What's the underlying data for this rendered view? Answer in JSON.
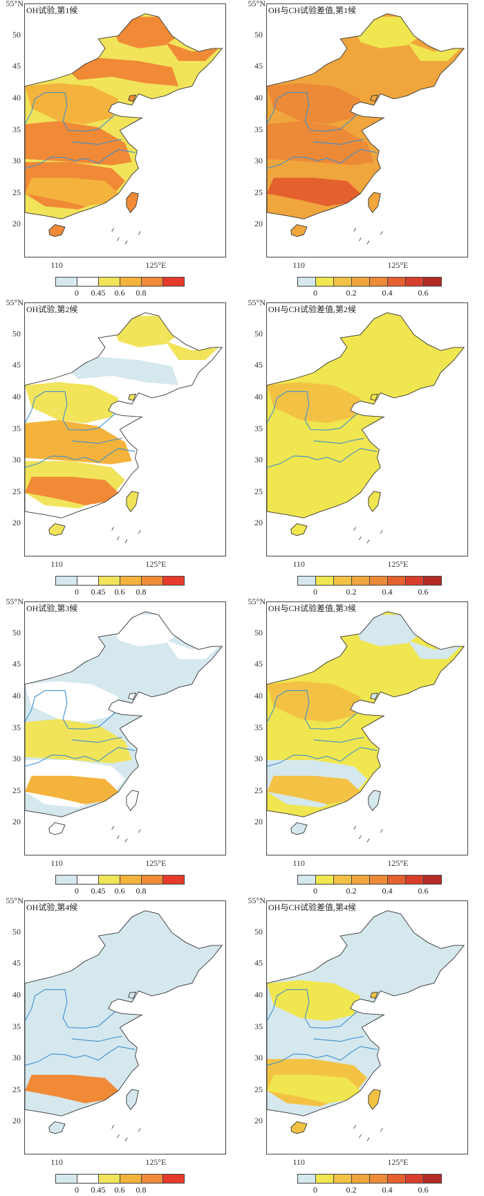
{
  "units": {
    "lat_top": "55°N",
    "lon_a": "110",
    "lon_b": "125°E"
  },
  "lat_labels": [
    "50",
    "45",
    "40",
    "35",
    "30",
    "25",
    "20"
  ],
  "colorbars": {
    "oh": {
      "colors": [
        "#d5e8ee",
        "#ffffff",
        "#f1e45a",
        "#f4b33c",
        "#f08a37",
        "#e63a2d"
      ],
      "ticks": [
        "0",
        "0.45",
        "0.6",
        "0.8"
      ]
    },
    "diff": {
      "colors": [
        "#d5e8ee",
        "#f0e64f",
        "#f3c245",
        "#f0a63c",
        "#ec8a37",
        "#e4602f",
        "#d83e2c",
        "#b32b26"
      ],
      "ticks": [
        "0",
        "0.2",
        "0.4",
        "0.6"
      ]
    }
  },
  "panels": [
    {
      "title": "OH试验,第1候",
      "type": "oh",
      "lvl": [
        4,
        4,
        3,
        4,
        4,
        3
      ]
    },
    {
      "title": "OH与CH试验差值,第1候",
      "type": "diff",
      "lvl": [
        1,
        3,
        4,
        4,
        3,
        5
      ]
    },
    {
      "title": "OH试验,第2候",
      "type": "oh",
      "lvl": [
        2,
        0,
        2,
        3,
        2,
        4
      ]
    },
    {
      "title": "OH与CH试验差值,第2候",
      "type": "diff",
      "lvl": [
        1,
        1,
        2,
        1,
        1,
        1
      ]
    },
    {
      "title": "OH试验,第3候",
      "type": "oh",
      "lvl": [
        1,
        0,
        1,
        2,
        1,
        3
      ]
    },
    {
      "title": "OH与CH试验差值,第3候",
      "type": "diff",
      "lvl": [
        0,
        1,
        2,
        1,
        0,
        2
      ]
    },
    {
      "title": "OH试验,第4候",
      "type": "oh",
      "lvl": [
        0,
        0,
        0,
        0,
        0,
        4
      ]
    },
    {
      "title": "OH与CH试验差值,第4候",
      "type": "diff",
      "lvl": [
        0,
        0,
        1,
        0,
        2,
        1
      ]
    }
  ]
}
